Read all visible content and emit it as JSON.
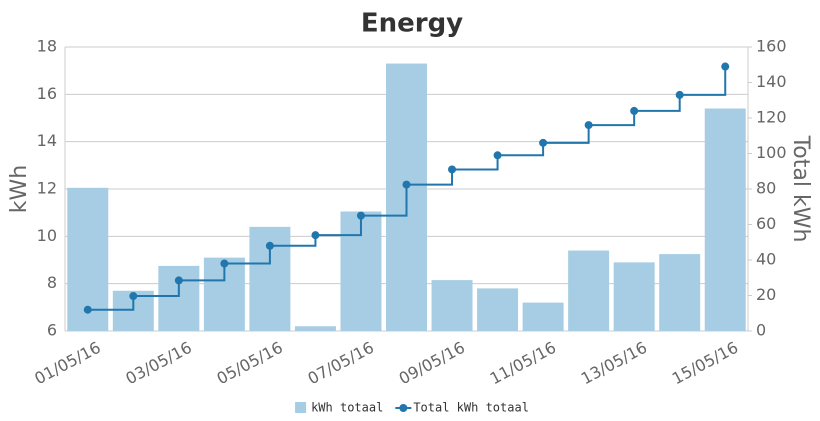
{
  "chart_data": {
    "type": "bar-step",
    "title": "Energy",
    "y_label": "kWh",
    "y2_label": "Total kWh",
    "categories": [
      "01/05/16",
      null,
      "03/05/16",
      null,
      "05/05/16",
      null,
      "07/05/16",
      null,
      "09/05/16",
      null,
      "11/05/16",
      null,
      "13/05/16",
      null,
      "15/05/16"
    ],
    "series": [
      {
        "name": "kWh totaal",
        "color": "#a6cde3",
        "type": "bar",
        "values": [
          12.05,
          7.7,
          8.75,
          9.1,
          10.4,
          6.2,
          11.05,
          17.3,
          8.15,
          7.8,
          7.2,
          9.4,
          8.9,
          9.25,
          15.4
        ]
      },
      {
        "name": "Total kWh totaal",
        "color": "#2176ae",
        "type": "step",
        "axis": "y2",
        "values": [
          12,
          19.7,
          28.5,
          38,
          48,
          54,
          65,
          82.5,
          91,
          99,
          106,
          116,
          124,
          133,
          149
        ]
      }
    ],
    "ylim": [
      6,
      18
    ],
    "yticks": [
      6,
      8,
      10,
      12,
      14,
      16,
      18
    ],
    "y2lim": [
      0,
      160
    ],
    "y2ticks": [
      0,
      20,
      40,
      60,
      80,
      100,
      120,
      140,
      160
    ],
    "grid": true,
    "legend": "bottom"
  }
}
